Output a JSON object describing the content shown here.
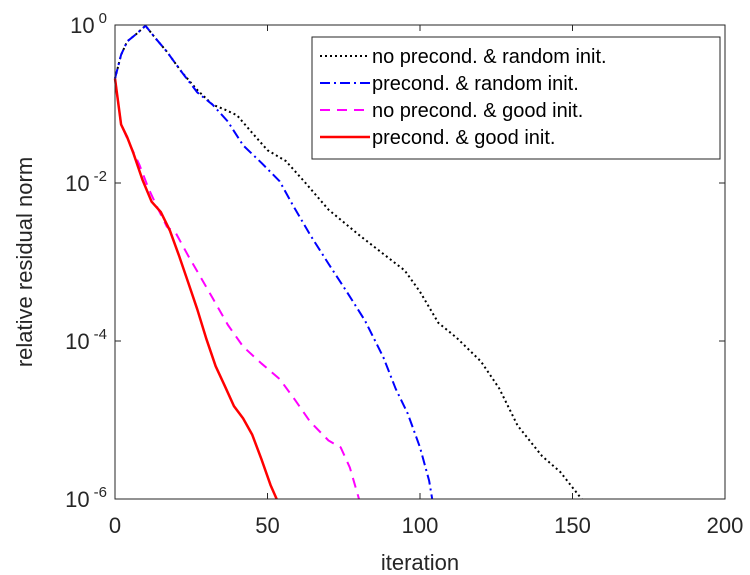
{
  "chart_data": {
    "type": "line",
    "xlabel": "iteration",
    "ylabel": "relative residual norm",
    "xlim": [
      0,
      200
    ],
    "ylim": [
      1e-06,
      1
    ],
    "yscale": "log",
    "grid": false,
    "legend_position": "top-right",
    "x_ticks": [
      {
        "value": 0,
        "label": "0"
      },
      {
        "value": 50,
        "label": "50"
      },
      {
        "value": 100,
        "label": "100"
      },
      {
        "value": 150,
        "label": "150"
      },
      {
        "value": 200,
        "label": "200"
      }
    ],
    "y_ticks": [
      {
        "value": 1,
        "base": "10",
        "exp": "0"
      },
      {
        "value": 0.01,
        "base": "10",
        "exp": "-2"
      },
      {
        "value": 0.0001,
        "base": "10",
        "exp": "-4"
      },
      {
        "value": 1e-06,
        "base": "10",
        "exp": "-6"
      }
    ],
    "series": [
      {
        "name": "no precond. & random init.",
        "color": "#000000",
        "style": "dotted",
        "points": [
          [
            0,
            0.21
          ],
          [
            2,
            0.42
          ],
          [
            4,
            0.62
          ],
          [
            7,
            0.77
          ],
          [
            10,
            0.98
          ],
          [
            13,
            0.7
          ],
          [
            17,
            0.46
          ],
          [
            22,
            0.25
          ],
          [
            27,
            0.15
          ],
          [
            32,
            0.098
          ],
          [
            36,
            0.085
          ],
          [
            40,
            0.072
          ],
          [
            45,
            0.043
          ],
          [
            50,
            0.026
          ],
          [
            56,
            0.019
          ],
          [
            62,
            0.0105
          ],
          [
            70,
            0.0046
          ],
          [
            80,
            0.0022
          ],
          [
            90,
            0.0011
          ],
          [
            95,
            0.00078
          ],
          [
            100,
            0.00042
          ],
          [
            106,
            0.00017
          ],
          [
            112,
            0.00011
          ],
          [
            120,
            5.5e-05
          ],
          [
            126,
            2.5e-05
          ],
          [
            132,
            8.5e-06
          ],
          [
            140,
            3.5e-06
          ],
          [
            146,
            2.2e-06
          ],
          [
            150,
            1.4e-06
          ],
          [
            153,
            1e-06
          ]
        ]
      },
      {
        "name": "precond. & random init.",
        "color": "#0000ff",
        "style": "dashdot",
        "points": [
          [
            0,
            0.21
          ],
          [
            2,
            0.42
          ],
          [
            4,
            0.62
          ],
          [
            7,
            0.77
          ],
          [
            10,
            0.98
          ],
          [
            13,
            0.7
          ],
          [
            17,
            0.46
          ],
          [
            22,
            0.25
          ],
          [
            27,
            0.14
          ],
          [
            32,
            0.098
          ],
          [
            37,
            0.06
          ],
          [
            42,
            0.03
          ],
          [
            48,
            0.018
          ],
          [
            54,
            0.0105
          ],
          [
            58,
            0.0055
          ],
          [
            64,
            0.0022
          ],
          [
            70,
            0.00095
          ],
          [
            76,
            0.00042
          ],
          [
            82,
            0.00018
          ],
          [
            88,
            6.2e-05
          ],
          [
            92,
            2.5e-05
          ],
          [
            96,
            1.2e-05
          ],
          [
            100,
            4.5e-06
          ],
          [
            103,
            1.7e-06
          ],
          [
            104,
            1e-06
          ]
        ]
      },
      {
        "name": "no precond. & good init.",
        "color": "#ff00ff",
        "style": "dashed",
        "points": [
          [
            0,
            0.21
          ],
          [
            2,
            0.055
          ],
          [
            5,
            0.03
          ],
          [
            8,
            0.017
          ],
          [
            11,
            0.0085
          ],
          [
            14,
            0.0048
          ],
          [
            17,
            0.0028
          ],
          [
            20,
            0.0023
          ],
          [
            24,
            0.0012
          ],
          [
            28,
            0.00065
          ],
          [
            32,
            0.00035
          ],
          [
            37,
            0.00016
          ],
          [
            42,
            8.5e-05
          ],
          [
            48,
            5.2e-05
          ],
          [
            54,
            3.3e-05
          ],
          [
            59,
            1.8e-05
          ],
          [
            64,
            9.5e-06
          ],
          [
            70,
            5.5e-06
          ],
          [
            74,
            4.5e-06
          ],
          [
            77,
            2.5e-06
          ],
          [
            80,
            1e-06
          ]
        ]
      },
      {
        "name": "precond. & good init.",
        "color": "#ff0000",
        "style": "solid",
        "points": [
          [
            0,
            0.21
          ],
          [
            2,
            0.055
          ],
          [
            4,
            0.038
          ],
          [
            6,
            0.024
          ],
          [
            9,
            0.011
          ],
          [
            12,
            0.0058
          ],
          [
            15,
            0.0043
          ],
          [
            18,
            0.0025
          ],
          [
            21,
            0.0012
          ],
          [
            24,
            0.00055
          ],
          [
            27,
            0.00025
          ],
          [
            30,
            0.000105
          ],
          [
            33,
            4.8e-05
          ],
          [
            36,
            2.7e-05
          ],
          [
            39,
            1.5e-05
          ],
          [
            42,
            1.05e-05
          ],
          [
            45,
            6.5e-06
          ],
          [
            48,
            3.2e-06
          ],
          [
            51,
            1.5e-06
          ],
          [
            53,
            1e-06
          ]
        ]
      }
    ]
  }
}
